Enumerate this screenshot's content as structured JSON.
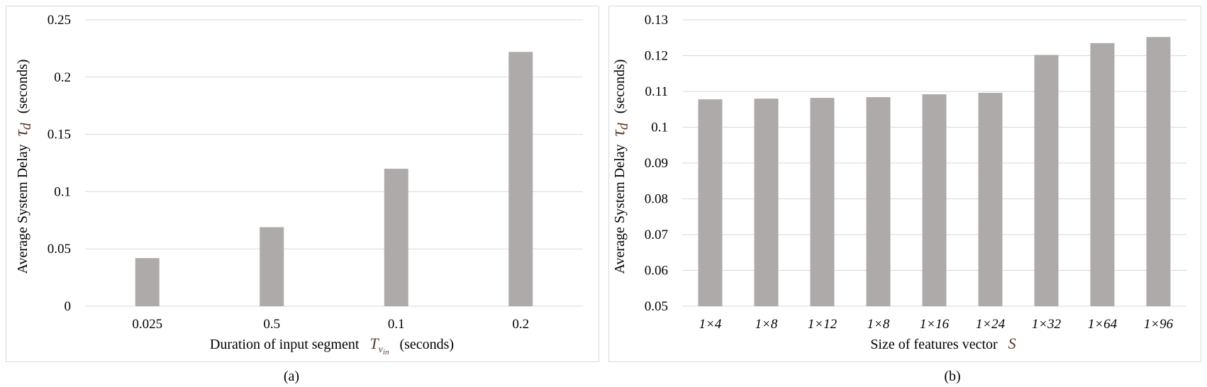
{
  "chart_data": [
    {
      "type": "bar",
      "panel_label": "(a)",
      "categories": [
        "0.025",
        "0.5",
        "0.1",
        "0.2"
      ],
      "values": [
        0.042,
        0.069,
        0.12,
        0.222
      ],
      "xlabel": "Duration of input segment",
      "xlabel_symbol": "T",
      "xlabel_sub": "v",
      "xlabel_subsub": "in",
      "xlabel_unit": "(seconds)",
      "ylabel": "Average System Delay",
      "ylabel_symbol": "τ",
      "ylabel_sub": "d",
      "ylabel_unit": "(seconds)",
      "ylim": [
        0,
        0.25
      ],
      "yticks": [
        "0",
        "0.05",
        "0.1",
        "0.15",
        "0.2",
        "0.25"
      ],
      "grid": true,
      "bar_color": "#aeaaa9"
    },
    {
      "type": "bar",
      "panel_label": "(b)",
      "categories": [
        "1×4",
        "1×8",
        "1×12",
        "1×8",
        "1×16",
        "1×24",
        "1×32",
        "1×64",
        "1×96"
      ],
      "values": [
        0.1078,
        0.108,
        0.1082,
        0.1084,
        0.1092,
        0.1096,
        0.1202,
        0.1235,
        0.1252
      ],
      "xlabel": "Size of features vector",
      "xlabel_symbol": "S",
      "ylabel": "Average System Delay",
      "ylabel_symbol": "τ",
      "ylabel_sub": "d",
      "ylabel_unit": "(seconds)",
      "ylim": [
        0.05,
        0.13
      ],
      "yticks": [
        "0.05",
        "0.06",
        "0.07",
        "0.08",
        "0.09",
        "0.1",
        "0.11",
        "0.12",
        "0.13"
      ],
      "grid": true,
      "bar_color": "#aeaaa9"
    }
  ]
}
